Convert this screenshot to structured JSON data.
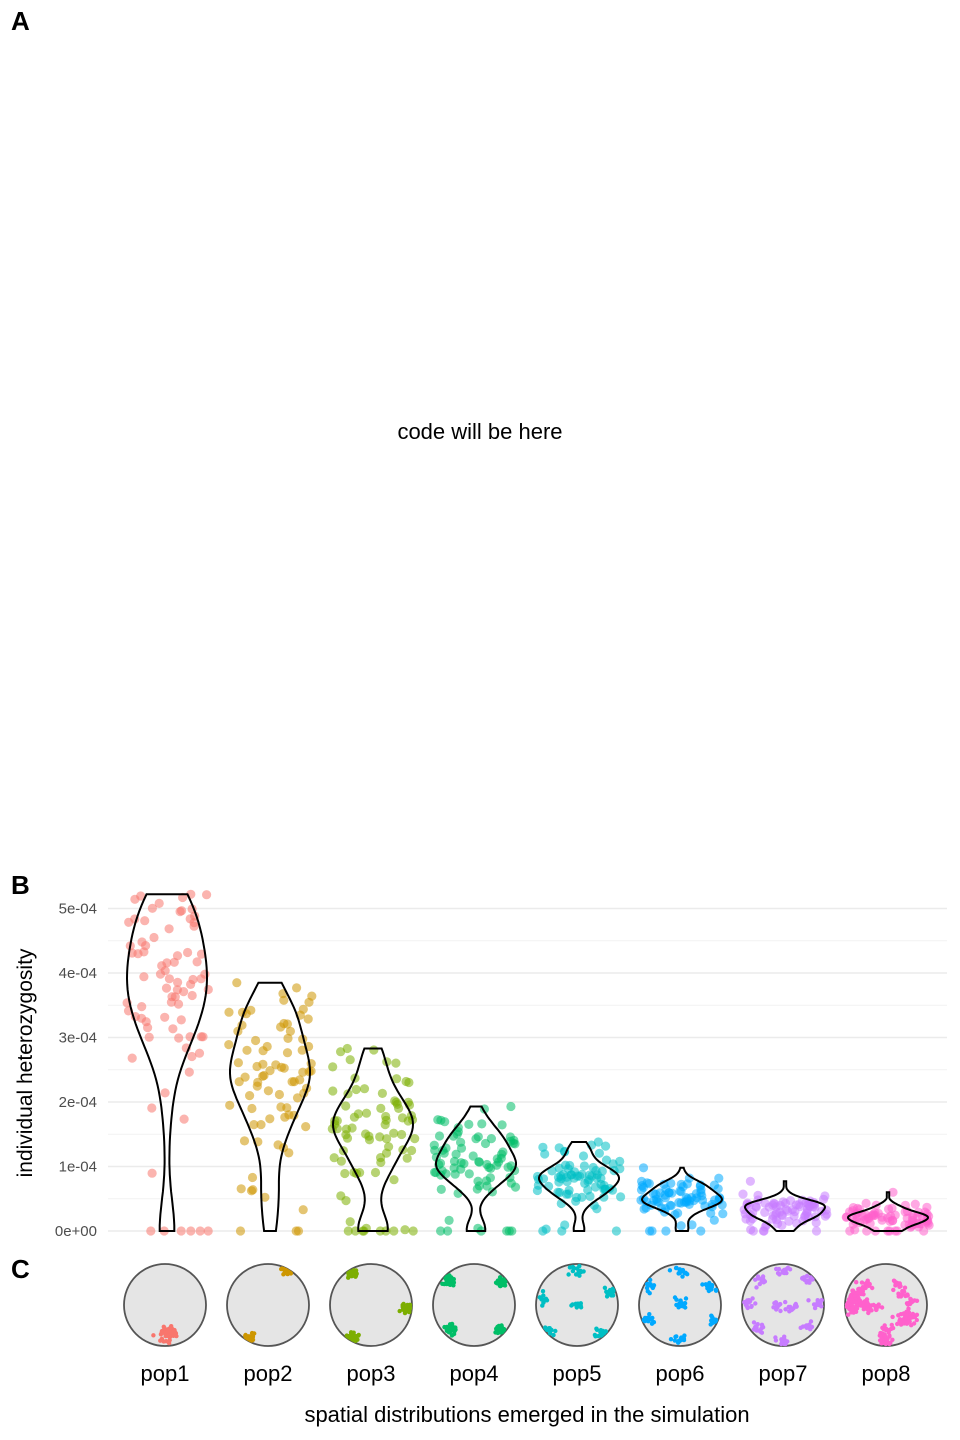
{
  "panels": {
    "a": "A",
    "b": "B",
    "c": "C"
  },
  "placeholder_text": "code will be here",
  "chart_data": {
    "type": "scatter",
    "subtype": "jittered points with violin outlines",
    "ylabel": "individual heterozygosity",
    "xlabel": "spatial distributions emerged in the simulation",
    "ylim": [
      0,
      0.00052
    ],
    "yticks": [
      0,
      0.0001,
      0.0002,
      0.0003,
      0.0004,
      0.0005
    ],
    "ytick_labels": [
      "0e+00",
      "1e-04",
      "2e-04",
      "3e-04",
      "4e-04",
      "5e-04"
    ],
    "grid": true,
    "legend": "none",
    "categories": [
      "pop1",
      "pop2",
      "pop3",
      "pop4",
      "pop5",
      "pop6",
      "pop7",
      "pop8"
    ],
    "colors": [
      "#F8766D",
      "#CD9600",
      "#7CAE00",
      "#00BE67",
      "#00BFC4",
      "#00A9FF",
      "#C77CFF",
      "#FF61CC"
    ],
    "series": [
      {
        "category": "pop1",
        "n": 80,
        "max": 0.000522,
        "median": 0.000396,
        "zeros": 6
      },
      {
        "category": "pop2",
        "n": 80,
        "max": 0.000385,
        "median": 0.000265,
        "zeros": 3
      },
      {
        "category": "pop3",
        "n": 80,
        "max": 0.000283,
        "median": 0.00018,
        "zeros": 8
      },
      {
        "category": "pop4",
        "n": 80,
        "max": 0.000193,
        "median": 0.00012,
        "zeros": 6
      },
      {
        "category": "pop5",
        "n": 80,
        "max": 0.000138,
        "median": 8.2e-05,
        "zeros": 3
      },
      {
        "category": "pop6",
        "n": 80,
        "max": 9.8e-05,
        "median": 5e-05,
        "zeros": 4
      },
      {
        "category": "pop7",
        "n": 80,
        "max": 7.7e-05,
        "median": 3.6e-05,
        "zeros": 4
      },
      {
        "category": "pop8",
        "n": 80,
        "max": 6e-05,
        "median": 1.8e-05,
        "zeros": 8
      }
    ],
    "spatial_maps": [
      {
        "category": "pop1",
        "clusters": 1
      },
      {
        "category": "pop2",
        "clusters": 2
      },
      {
        "category": "pop3",
        "clusters": 3
      },
      {
        "category": "pop4",
        "clusters": 4
      },
      {
        "category": "pop5",
        "clusters": 5
      },
      {
        "category": "pop6",
        "clusters": 6
      },
      {
        "category": "pop7",
        "clusters": 8
      },
      {
        "category": "pop8",
        "clusters": 16
      }
    ]
  }
}
